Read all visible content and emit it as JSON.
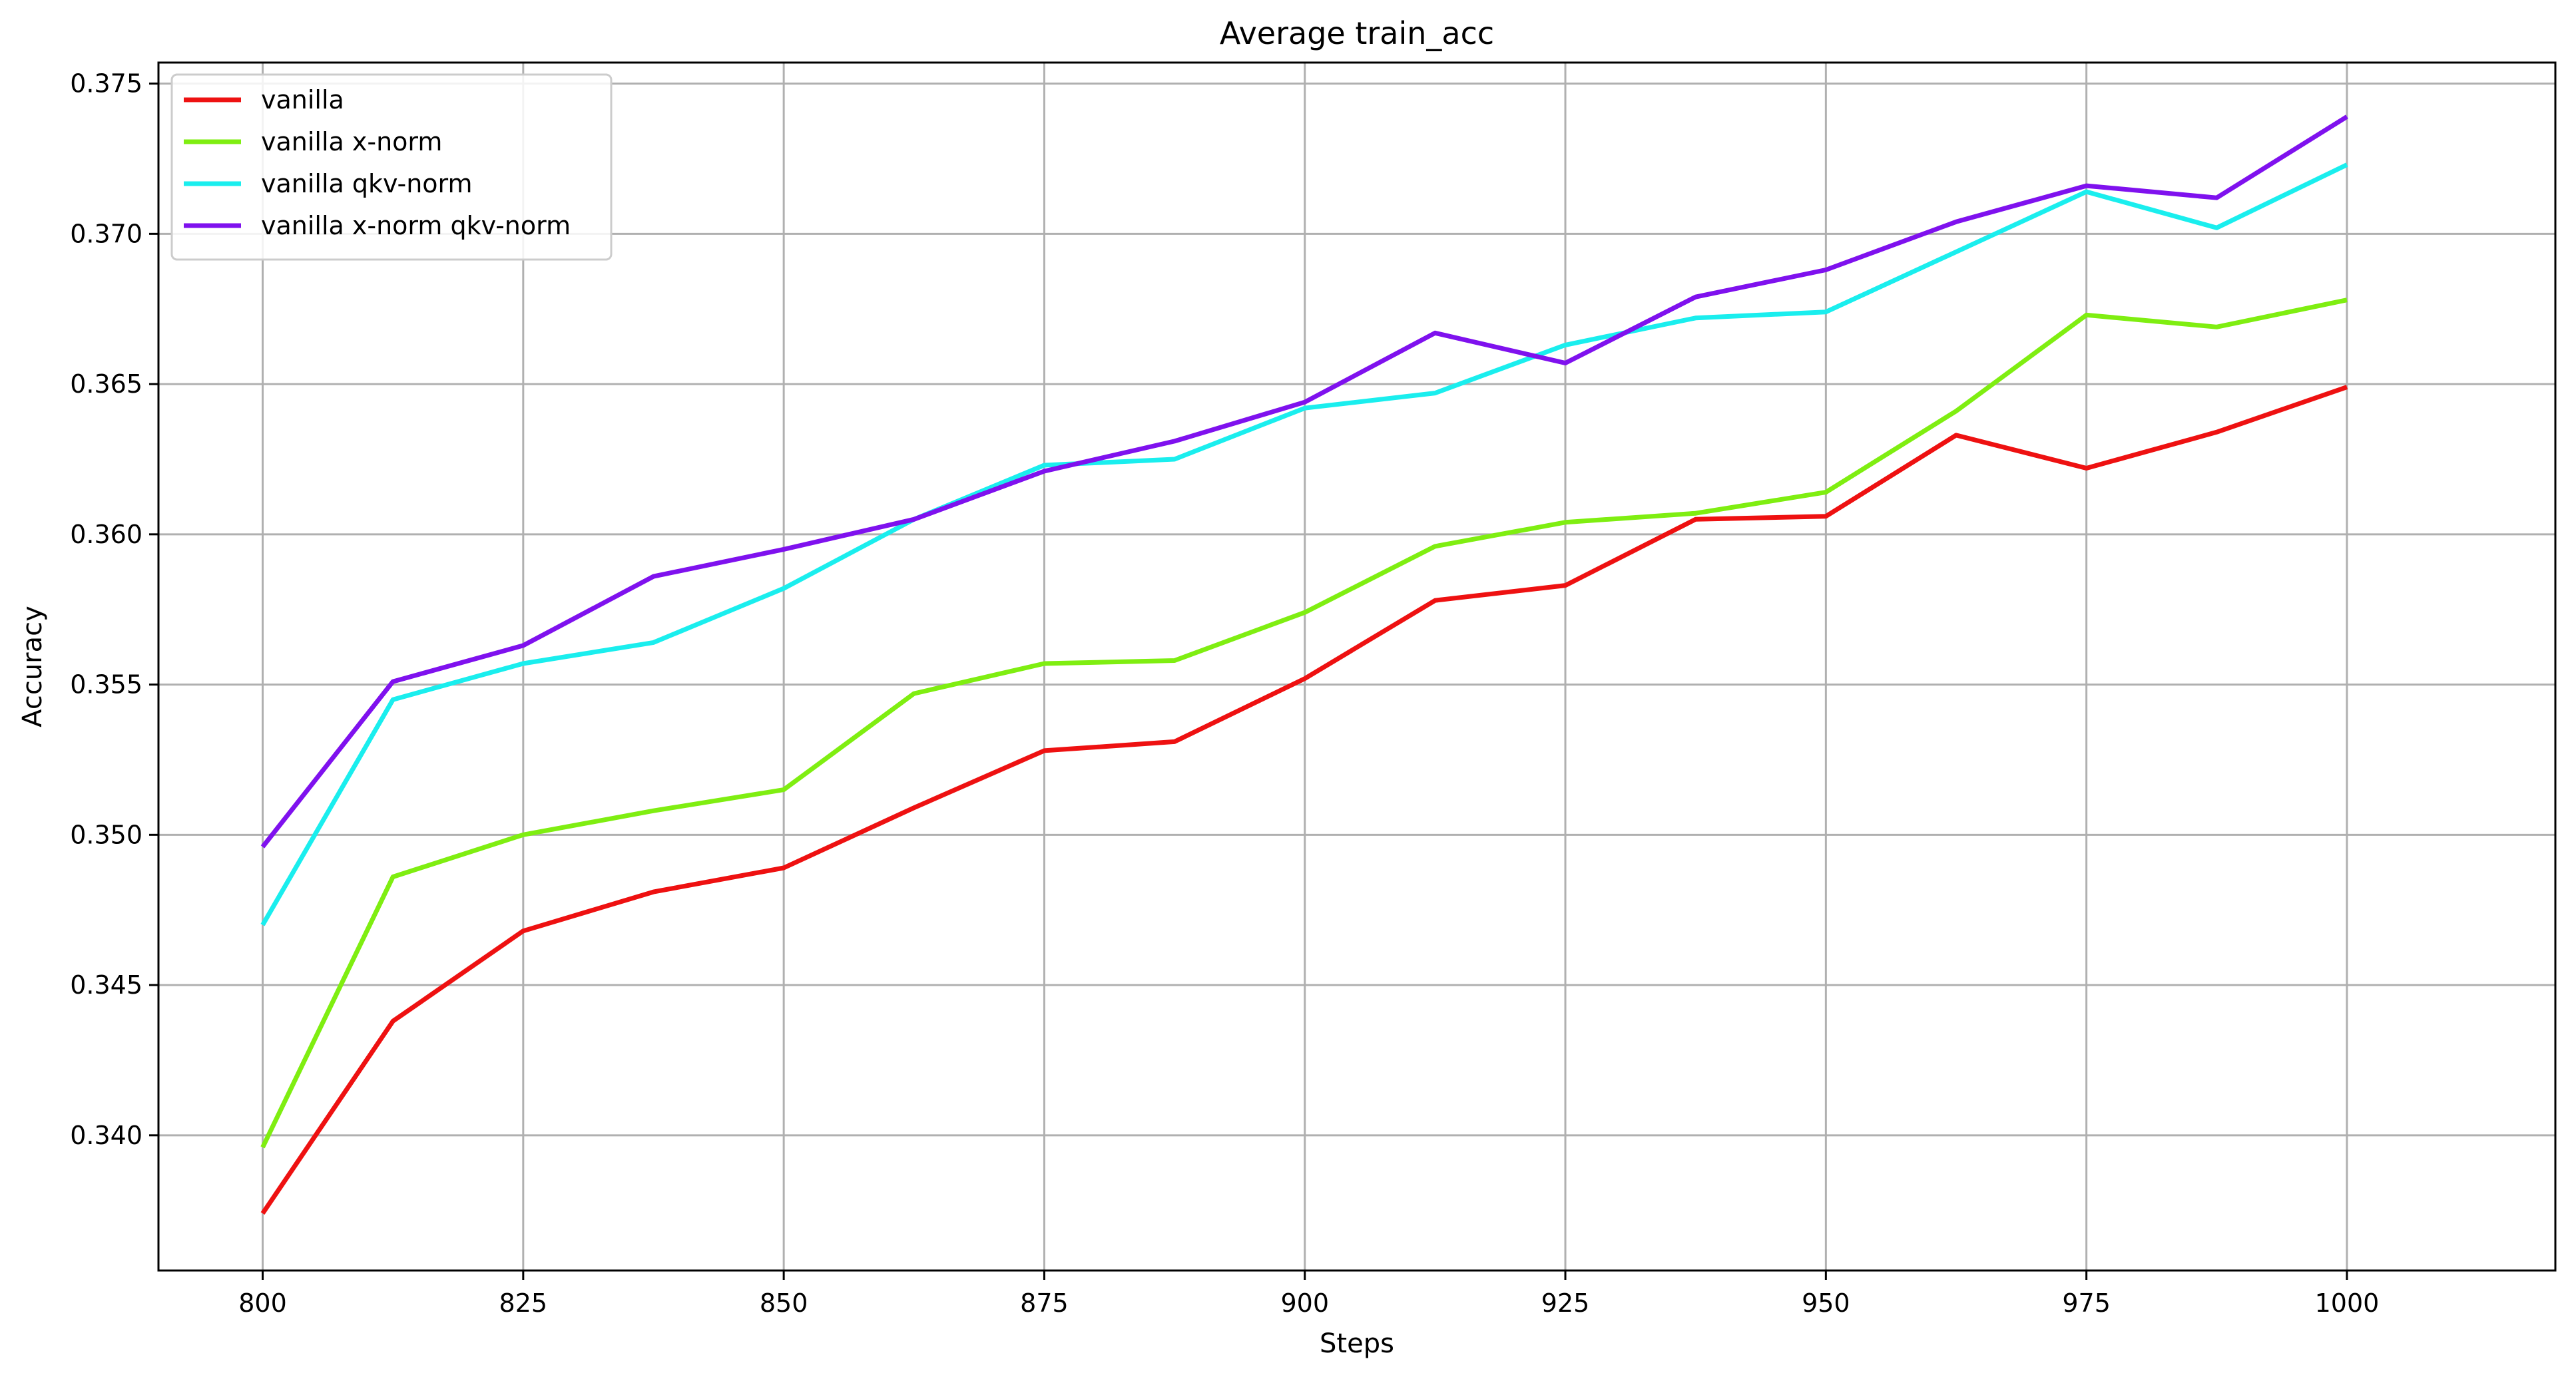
{
  "chart_data": {
    "type": "line",
    "title": "Average train_acc",
    "xlabel": "Steps",
    "ylabel": "Accuracy",
    "xlim": [
      790,
      1020
    ],
    "ylim": [
      0.3355,
      0.3757
    ],
    "x": [
      800,
      812.5,
      825,
      837.5,
      850,
      862.5,
      875,
      887.5,
      900,
      912.5,
      925,
      937.5,
      950,
      962.5,
      975,
      987.5,
      1000
    ],
    "xticks": [
      800,
      825,
      850,
      875,
      900,
      925,
      950,
      975,
      1000
    ],
    "xtick_labels": [
      "800",
      "825",
      "850",
      "875",
      "900",
      "925",
      "950",
      "975",
      "1000"
    ],
    "yticks": [
      0.34,
      0.345,
      0.35,
      0.355,
      0.36,
      0.365,
      0.37,
      0.375
    ],
    "ytick_labels": [
      "0.340",
      "0.345",
      "0.350",
      "0.355",
      "0.360",
      "0.365",
      "0.370",
      "0.375"
    ],
    "grid": true,
    "legend_position": "top-left",
    "series": [
      {
        "name": "vanilla",
        "color": "#ee1111",
        "values": [
          0.3374,
          0.3438,
          0.3468,
          0.3481,
          0.3489,
          0.3509,
          0.3528,
          0.3531,
          0.3552,
          0.3578,
          0.3583,
          0.3605,
          0.3606,
          0.3633,
          0.3622,
          0.3634,
          0.3649
        ]
      },
      {
        "name": "vanilla x-norm",
        "color": "#7fee11",
        "values": [
          0.3396,
          0.3486,
          0.35,
          0.3508,
          0.3515,
          0.3547,
          0.3557,
          0.3558,
          0.3574,
          0.3596,
          0.3604,
          0.3607,
          0.3614,
          0.3641,
          0.3673,
          0.3669,
          0.3678
        ]
      },
      {
        "name": "vanilla qkv-norm",
        "color": "#1aeeee",
        "values": [
          0.347,
          0.3545,
          0.3557,
          0.3564,
          0.3582,
          0.3605,
          0.3623,
          0.3625,
          0.3642,
          0.3647,
          0.3663,
          0.3672,
          0.3674,
          0.3694,
          0.3714,
          0.3702,
          0.3723
        ]
      },
      {
        "name": "vanilla x-norm qkv-norm",
        "color": "#7f11ee",
        "values": [
          0.3496,
          0.3551,
          0.3563,
          0.3586,
          0.3595,
          0.3605,
          0.3621,
          0.3631,
          0.3644,
          0.3667,
          0.3657,
          0.3679,
          0.3688,
          0.3704,
          0.3716,
          0.3712,
          0.3739
        ]
      }
    ]
  }
}
